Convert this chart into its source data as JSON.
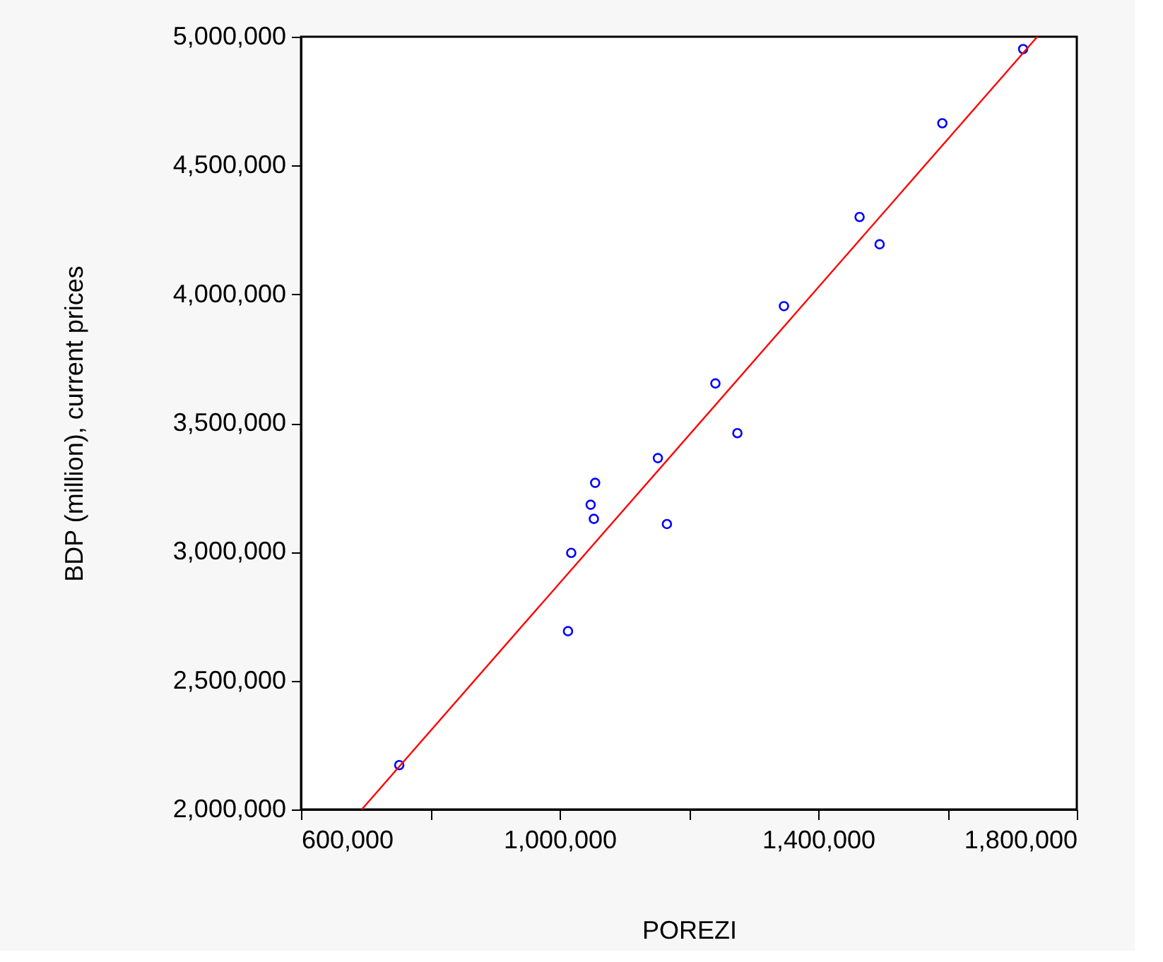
{
  "chart_data": {
    "type": "scatter",
    "xlabel": "POREZI",
    "ylabel": "BDP (million), current prices",
    "xlim": [
      600000,
      1800000
    ],
    "ylim": [
      2000000,
      5000000
    ],
    "xticks": [
      {
        "value": 600000,
        "label": "600,000"
      },
      {
        "value": 800000,
        "label": null
      },
      {
        "value": 1000000,
        "label": "1,000,000"
      },
      {
        "value": 1200000,
        "label": null
      },
      {
        "value": 1400000,
        "label": "1,400,000"
      },
      {
        "value": 1600000,
        "label": null
      },
      {
        "value": 1800000,
        "label": "1,800,000"
      }
    ],
    "yticks": [
      {
        "value": 2000000,
        "label": "2,000,000"
      },
      {
        "value": 2500000,
        "label": "2,500,000"
      },
      {
        "value": 3000000,
        "label": "3,000,000"
      },
      {
        "value": 3500000,
        "label": "3,500,000"
      },
      {
        "value": 4000000,
        "label": "4,000,000"
      },
      {
        "value": 4500000,
        "label": "4,500,000"
      },
      {
        "value": 5000000,
        "label": "5,000,000"
      }
    ],
    "grid": false,
    "marker": "circle",
    "series": [
      {
        "color": "#0000ff",
        "x": [
          752000,
          1013000,
          1018000,
          1053000,
          1048000,
          1055000,
          1152000,
          1166000,
          1275000,
          1241000,
          1347000,
          1464000,
          1495000,
          1592000,
          1717000
        ],
        "values": [
          2172000,
          2692000,
          2996000,
          3128000,
          3183000,
          3268000,
          3364000,
          3108000,
          3461000,
          3654000,
          3954000,
          4300000,
          4194000,
          4664000,
          4952000
        ]
      },
      {
        "type": "line",
        "color": "#ff0000",
        "line_style": "solid",
        "marker": "none",
        "x": [
          694000,
          1739000
        ],
        "values": [
          2000000,
          5000000
        ]
      }
    ]
  }
}
